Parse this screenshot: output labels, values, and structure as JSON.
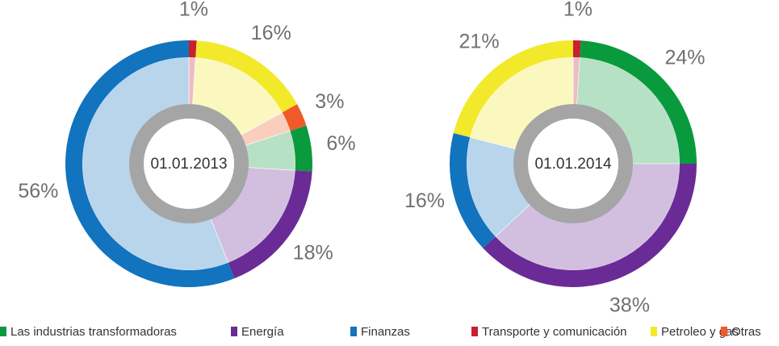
{
  "chart_data": [
    {
      "type": "pie",
      "title": "01.01.2013",
      "categories": [
        "Transporte y comunicación",
        "Petroleo y gas",
        "Otras",
        "Las industrias transformadoras",
        "Energía",
        "Finanzas"
      ],
      "values": [
        1,
        16,
        3,
        6,
        18,
        56
      ],
      "value_labels": [
        "1%",
        "16%",
        "3%",
        "6%",
        "18%",
        "56%"
      ]
    },
    {
      "type": "pie",
      "title": "01.01.2014",
      "categories": [
        "Transporte y comunicación",
        "Las industrias transformadoras",
        "Energía",
        "Finanzas",
        "Petroleo y gas"
      ],
      "values": [
        1,
        24,
        38,
        16,
        21
      ],
      "value_labels": [
        "1%",
        "24%",
        "38%",
        "16%",
        "21%"
      ]
    }
  ],
  "legend": [
    {
      "name": "Las industrias transformadoras",
      "color": "#0a9a3e"
    },
    {
      "name": "Energía",
      "color": "#6a2b96"
    },
    {
      "name": "Finanzas",
      "color": "#1273be"
    },
    {
      "name": "Transporte y comunicación",
      "color": "#c8202f"
    },
    {
      "name": "Petroleo y gas",
      "color": "#f2e92b"
    },
    {
      "name": "Otras",
      "color": "#ef5a28"
    }
  ]
}
